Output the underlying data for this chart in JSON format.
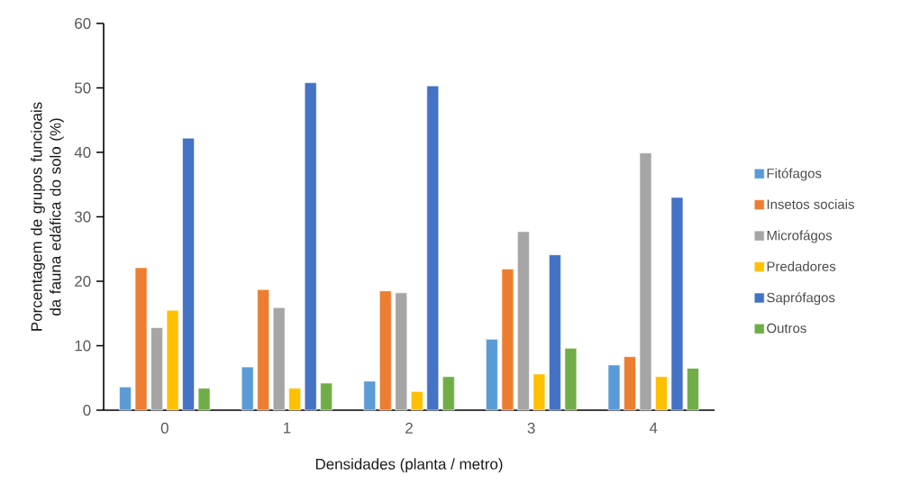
{
  "chart_data": {
    "type": "bar",
    "xlabel": "Densidades (planta / metro)",
    "ylabel": "Porcentagem de grupos funcioais da fauna edáfica do solo (%)",
    "categories": [
      "0",
      "1",
      "2",
      "3",
      "4"
    ],
    "series": [
      {
        "name": "Fitófagos",
        "color": "#5b9bd5",
        "values": [
          3.6,
          6.7,
          4.5,
          11.0,
          7.0
        ]
      },
      {
        "name": "Insetos sociais",
        "color": "#ed7d31",
        "values": [
          22.1,
          18.7,
          18.5,
          21.9,
          8.3
        ]
      },
      {
        "name": "Microfágos",
        "color": "#a5a5a5",
        "values": [
          12.8,
          15.9,
          18.2,
          27.7,
          39.9
        ]
      },
      {
        "name": "Predadores",
        "color": "#ffc000",
        "values": [
          15.5,
          3.4,
          2.9,
          5.6,
          5.2
        ]
      },
      {
        "name": "Saprófagos",
        "color": "#4472c4",
        "values": [
          42.2,
          50.8,
          50.3,
          24.1,
          33.0
        ]
      },
      {
        "name": "Outros",
        "color": "#70ad47",
        "values": [
          3.4,
          4.2,
          5.2,
          9.6,
          6.5
        ]
      }
    ],
    "ylim": [
      0,
      60
    ],
    "yticks": [
      0,
      10,
      20,
      30,
      40,
      50,
      60
    ],
    "legend": "right"
  }
}
